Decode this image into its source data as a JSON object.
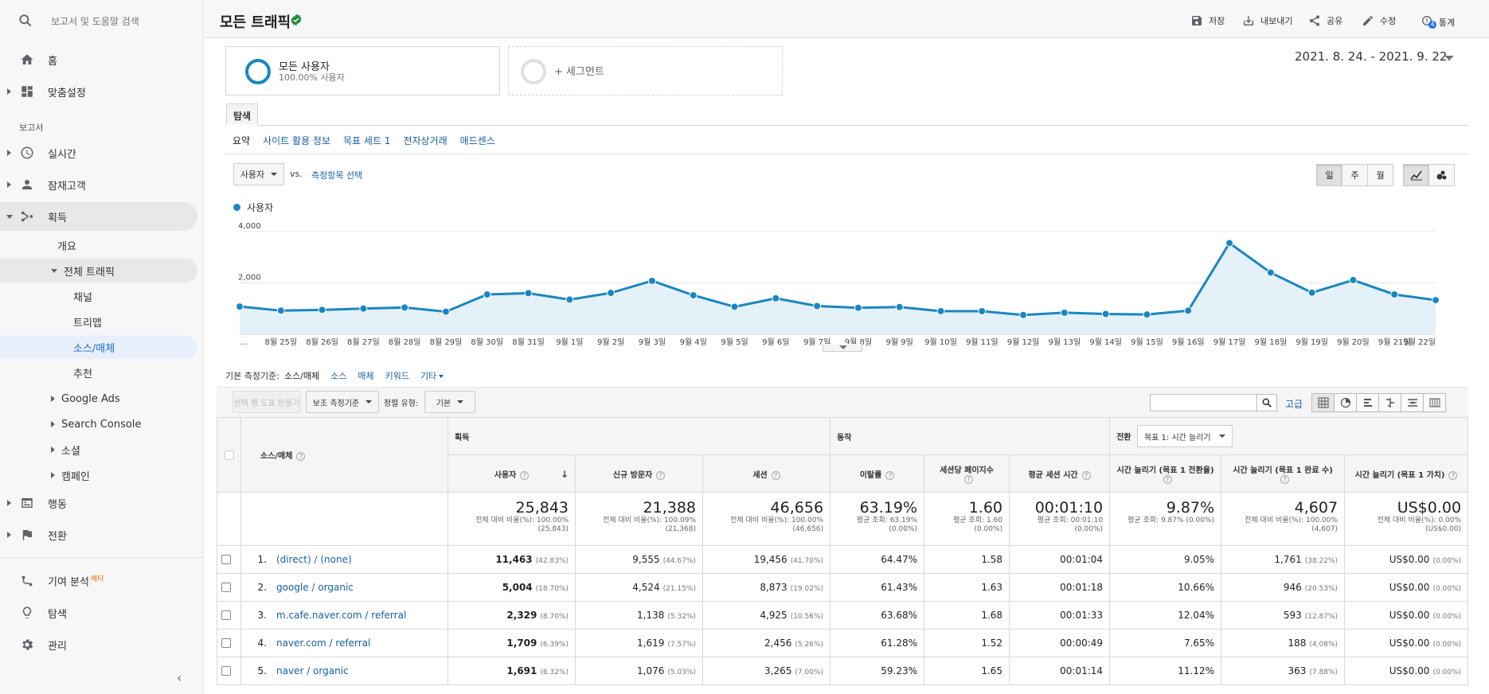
{
  "sidebar": {
    "search_placeholder": "보고서 및 도움말 검색",
    "home": "홈",
    "customization": "맞춤설정",
    "reports_label": "보고서",
    "realtime": "실시간",
    "audience": "잠재고객",
    "acquisition": "획득",
    "overview": "개요",
    "all_traffic": "전체 트래픽",
    "channels": "채널",
    "treemap": "트리맵",
    "source_medium": "소스/매체",
    "referrals": "추천",
    "google_ads": "Google Ads",
    "search_console": "Search Console",
    "social": "소셜",
    "campaigns": "캠페인",
    "behavior": "행동",
    "conversions": "전환",
    "attribution": "기여 분석",
    "attribution_badge": "베타",
    "discover": "탐색",
    "admin": "관리",
    "collapse": "‹"
  },
  "header": {
    "title": "모든 트래픽",
    "save": "저장",
    "export": "내보내기",
    "share": "공유",
    "edit": "수정",
    "insights": "통계",
    "insights_count": "4"
  },
  "segments": {
    "all_users": "모든 사용자",
    "all_users_sub": "100.00% 사용자",
    "add_segment": "+ 세그먼트"
  },
  "date_range": "2021. 8. 24. - 2021. 9. 22.",
  "tabs": {
    "explore": "탐색",
    "subtabs": [
      "요약",
      "사이트 활용 정보",
      "목표 세트 1",
      "전자상거래",
      "애드센스"
    ]
  },
  "chart_controls": {
    "metric": "사용자",
    "vs": "vs.",
    "select_metric": "측정항목 선택",
    "day": "일",
    "week": "주",
    "month": "월"
  },
  "chart_data": {
    "type": "area",
    "series": [
      {
        "name": "사용자",
        "values": [
          1080,
          920,
          950,
          1000,
          1040,
          880,
          1550,
          1600,
          1350,
          1610,
          2080,
          1520,
          1070,
          1400,
          1100,
          1030,
          1060,
          900,
          900,
          750,
          840,
          790,
          770,
          920,
          3550,
          2400,
          1620,
          2110,
          1550,
          1330
        ]
      }
    ],
    "x": [
      "…",
      "8월 25일",
      "8월 26일",
      "8월 27일",
      "8월 28일",
      "8월 29일",
      "8월 30일",
      "8월 31일",
      "9월 1일",
      "9월 2일",
      "9월 3일",
      "9월 4일",
      "9월 5일",
      "9월 6일",
      "9월 7일",
      "9월 8일",
      "9월 9일",
      "9월 10일",
      "9월 11일",
      "9월 12일",
      "9월 13일",
      "9월 14일",
      "9월 15일",
      "9월 16일",
      "9월 17일",
      "9월 18일",
      "9월 19일",
      "9월 20일",
      "9월 21일",
      "9월 22일"
    ],
    "y_ticks": [
      "4,000",
      "2,000"
    ],
    "ylim": [
      0,
      4400
    ],
    "grid": true,
    "color": "#1a86c1"
  },
  "dimensions": {
    "label": "기본 측정기준:",
    "current": "소스/매체",
    "options": [
      "소스",
      "매체",
      "키워드"
    ],
    "other": "기타"
  },
  "table_toolbar": {
    "create_segment": "선택 행 도표 만들기",
    "secondary_dim": "보조 측정기준",
    "sort_type_label": "정렬 유형:",
    "sort_type": "기본",
    "advanced": "고급"
  },
  "table": {
    "dim_header": "소스/매체",
    "group_acquisition": "획득",
    "group_behavior": "동작",
    "group_conversion": "전환",
    "goal_select": "목표 1: 시간 늘리기",
    "columns": [
      "사용자",
      "신규 방문자",
      "세션",
      "이탈률",
      "세션당 페이지수",
      "평균 세션 시간",
      "시간 늘리기 (목표 1 전환율)",
      "시간 늘리기 (목표 1 완료 수)",
      "시간 늘리기 (목표 1 가치)"
    ],
    "totals": [
      {
        "value": "25,843",
        "sub1": "전체 대비 비율(%): 100.00%",
        "sub2": "(25,843)"
      },
      {
        "value": "21,388",
        "sub1": "전체 대비 비율(%): 100.09%",
        "sub2": "(21,368)"
      },
      {
        "value": "46,656",
        "sub1": "전체 대비 비율(%): 100.00%",
        "sub2": "(46,656)"
      },
      {
        "value": "63.19%",
        "sub1": "평균 조회: 63.19%",
        "sub2": "(0.00%)"
      },
      {
        "value": "1.60",
        "sub1": "평균 조회: 1.60",
        "sub2": "(0.00%)"
      },
      {
        "value": "00:01:10",
        "sub1": "평균 조회: 00:01:10",
        "sub2": "(0.00%)"
      },
      {
        "value": "9.87%",
        "sub1": "평균 조회: 9.87% (0.00%)",
        "sub2": ""
      },
      {
        "value": "4,607",
        "sub1": "전체 대비 비율(%): 100.00%",
        "sub2": "(4,607)"
      },
      {
        "value": "US$0.00",
        "sub1": "전체 대비 비율(%): 0.00%",
        "sub2": "(US$0.00)"
      }
    ],
    "rows": [
      {
        "idx": "1.",
        "source": "(direct) / (none)",
        "users": "11,463",
        "users_pct": "(42.83%)",
        "new": "9,555",
        "new_pct": "(44.67%)",
        "sessions": "19,456",
        "sessions_pct": "(41.70%)",
        "bounce": "64.47%",
        "pps": "1.58",
        "dur": "00:01:04",
        "conv": "9.05%",
        "comp": "1,761",
        "comp_pct": "(38.22%)",
        "val": "US$0.00",
        "val_pct": "(0.00%)"
      },
      {
        "idx": "2.",
        "source": "google / organic",
        "users": "5,004",
        "users_pct": "(18.70%)",
        "new": "4,524",
        "new_pct": "(21.15%)",
        "sessions": "8,873",
        "sessions_pct": "(19.02%)",
        "bounce": "61.43%",
        "pps": "1.63",
        "dur": "00:01:18",
        "conv": "10.66%",
        "comp": "946",
        "comp_pct": "(20.53%)",
        "val": "US$0.00",
        "val_pct": "(0.00%)"
      },
      {
        "idx": "3.",
        "source": "m.cafe.naver.com / referral",
        "users": "2,329",
        "users_pct": "(8.70%)",
        "new": "1,138",
        "new_pct": "(5.32%)",
        "sessions": "4,925",
        "sessions_pct": "(10.56%)",
        "bounce": "63.68%",
        "pps": "1.68",
        "dur": "00:01:33",
        "conv": "12.04%",
        "comp": "593",
        "comp_pct": "(12.87%)",
        "val": "US$0.00",
        "val_pct": "(0.00%)"
      },
      {
        "idx": "4.",
        "source": "naver.com / referral",
        "users": "1,709",
        "users_pct": "(6.39%)",
        "new": "1,619",
        "new_pct": "(7.57%)",
        "sessions": "2,456",
        "sessions_pct": "(5.26%)",
        "bounce": "61.28%",
        "pps": "1.52",
        "dur": "00:00:49",
        "conv": "7.65%",
        "comp": "188",
        "comp_pct": "(4.08%)",
        "val": "US$0.00",
        "val_pct": "(0.00%)"
      },
      {
        "idx": "5.",
        "source": "naver / organic",
        "users": "1,691",
        "users_pct": "(6.32%)",
        "new": "1,076",
        "new_pct": "(5.03%)",
        "sessions": "3,265",
        "sessions_pct": "(7.00%)",
        "bounce": "59.23%",
        "pps": "1.65",
        "dur": "00:01:14",
        "conv": "11.12%",
        "comp": "363",
        "comp_pct": "(7.88%)",
        "val": "US$0.00",
        "val_pct": "(0.00%)"
      }
    ]
  }
}
